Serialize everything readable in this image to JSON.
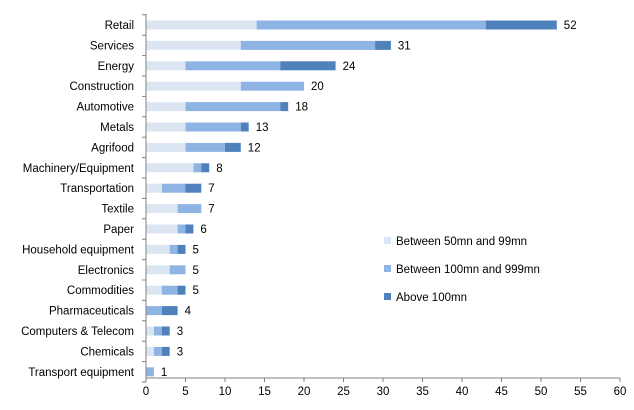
{
  "chart_data": {
    "type": "bar",
    "orientation": "horizontal",
    "stacked": true,
    "title": "",
    "xlabel": "",
    "ylabel": "",
    "xlim": [
      0,
      60
    ],
    "x_ticks": [
      0,
      5,
      10,
      15,
      20,
      25,
      30,
      35,
      40,
      45,
      50,
      55,
      60
    ],
    "grid": false,
    "legend_position": "right",
    "categories": [
      "Retail",
      "Services",
      "Energy",
      "Construction",
      "Automotive",
      "Metals",
      "Agrifood",
      "Machinery/Equipment",
      "Transportation",
      "Textile",
      "Paper",
      "Household equipment",
      "Electronics",
      "Commodities",
      "Pharmaceuticals",
      "Computers & Telecom",
      "Chemicals",
      "Transport equipment"
    ],
    "series": [
      {
        "name": "Between 50mn and 99mn",
        "color": "#dce6f2",
        "values": [
          14,
          12,
          5,
          12,
          5,
          5,
          5,
          6,
          2,
          4,
          4,
          3,
          3,
          2,
          0,
          1,
          1,
          0
        ]
      },
      {
        "name": "Between 100mn and 999mn",
        "color": "#8eb4e3",
        "values": [
          29,
          17,
          12,
          8,
          12,
          7,
          5,
          1,
          3,
          3,
          1,
          1,
          2,
          2,
          2,
          1,
          1,
          1
        ]
      },
      {
        "name": "Above 100mn",
        "color": "#4f81bd",
        "values": [
          9,
          2,
          7,
          0,
          1,
          1,
          2,
          1,
          2,
          0,
          1,
          1,
          0,
          1,
          2,
          1,
          1,
          0
        ]
      }
    ],
    "totals": [
      52,
      31,
      24,
      20,
      18,
      13,
      12,
      8,
      7,
      7,
      6,
      5,
      5,
      5,
      4,
      3,
      3,
      1
    ]
  }
}
